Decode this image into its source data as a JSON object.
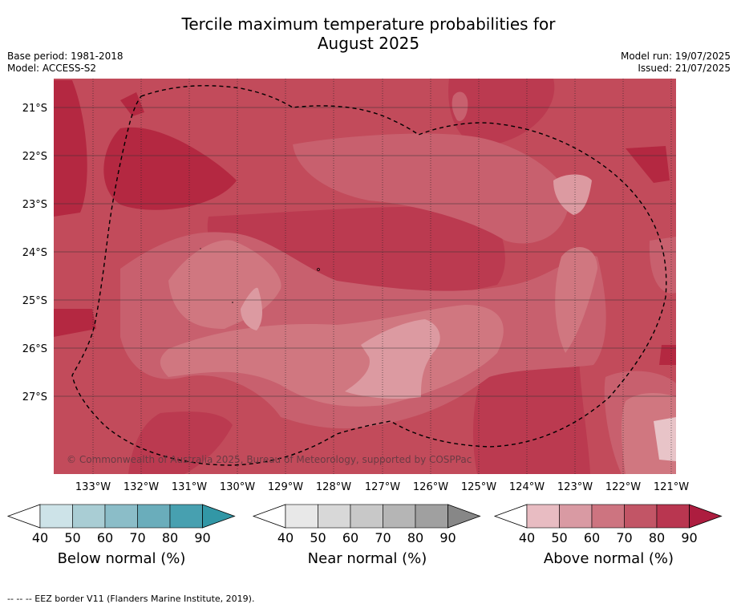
{
  "header": {
    "title_line1": "Tercile maximum temperature probabilities for",
    "title_line2": "August 2025",
    "base_period": "Base period: 1981-2018",
    "model": "Model: ACCESS-S2",
    "model_run": "Model run: 19/07/2025",
    "issued": "Issued: 21/07/2025"
  },
  "map": {
    "lat_labels": [
      "21°S",
      "22°S",
      "23°S",
      "24°S",
      "25°S",
      "26°S",
      "27°S"
    ],
    "lon_labels": [
      "133°W",
      "132°W",
      "131°W",
      "130°W",
      "129°W",
      "128°W",
      "127°W",
      "126°W",
      "125°W",
      "124°W",
      "123°W",
      "122°W",
      "121°W"
    ],
    "copyright": "© Commonwealth of Australia 2025, Bureau of Meteorology, supported by COSPPac",
    "eez_style": "dashed black"
  },
  "colorbars": [
    {
      "label": "Below normal (%)",
      "ticks": [
        "40",
        "50",
        "60",
        "70",
        "80",
        "90"
      ],
      "colors": [
        "#ffffff",
        "#cde3e8",
        "#a9cdd4",
        "#8bbdc8",
        "#6aadbb",
        "#47a0b0",
        "#3297a6"
      ]
    },
    {
      "label": "Near normal (%)",
      "ticks": [
        "40",
        "50",
        "60",
        "70",
        "80",
        "90"
      ],
      "colors": [
        "#ffffff",
        "#e8e8e8",
        "#d8d8d8",
        "#c8c8c8",
        "#b5b5b5",
        "#a0a0a0",
        "#878787"
      ]
    },
    {
      "label": "Above normal (%)",
      "ticks": [
        "40",
        "50",
        "60",
        "70",
        "80",
        "90"
      ],
      "colors": [
        "#ffffff",
        "#e8bcc2",
        "#d99aa3",
        "#cd7480",
        "#c25566",
        "#b93650",
        "#ad1d3f"
      ]
    }
  ],
  "footnote": "--  --  -- EEZ border V11 (Flanders Marine Institute, 2019)."
}
